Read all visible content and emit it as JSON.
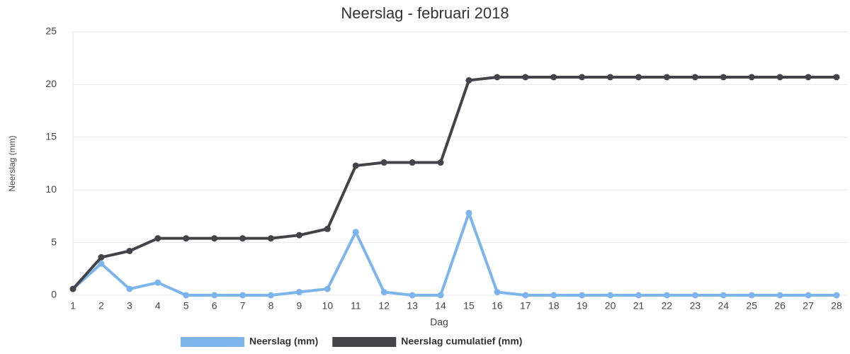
{
  "chart_data": {
    "type": "line",
    "title": "Neerslag - februari 2018",
    "x_label": "Dag",
    "y_label": "Neerslag (mm)",
    "x": [
      1,
      2,
      3,
      4,
      5,
      6,
      7,
      8,
      9,
      10,
      11,
      12,
      13,
      14,
      15,
      16,
      17,
      18,
      19,
      20,
      21,
      22,
      23,
      24,
      25,
      26,
      27,
      28
    ],
    "xlim": [
      1,
      28
    ],
    "xticks": [
      1,
      2,
      3,
      4,
      5,
      6,
      7,
      8,
      9,
      10,
      11,
      12,
      13,
      14,
      15,
      16,
      17,
      18,
      19,
      20,
      21,
      22,
      23,
      24,
      25,
      26,
      27,
      28
    ],
    "ylim": [
      0,
      25
    ],
    "yticks": [
      0,
      5,
      10,
      15,
      20,
      25
    ],
    "grid": true,
    "legend": "bottom",
    "series": [
      {
        "name": "Neerslag (mm)",
        "color": "#7cb5ec",
        "values": [
          0.6,
          3.0,
          0.6,
          1.2,
          0,
          0,
          0,
          0,
          0.3,
          0.6,
          6.0,
          0.3,
          0,
          0,
          7.8,
          0.3,
          0,
          0,
          0,
          0,
          0,
          0,
          0,
          0,
          0,
          0,
          0,
          0
        ]
      },
      {
        "name": "Neerslag cumulatief (mm)",
        "color": "#434348",
        "values": [
          0.6,
          3.6,
          4.2,
          5.4,
          5.4,
          5.4,
          5.4,
          5.4,
          5.7,
          6.3,
          12.3,
          12.6,
          12.6,
          12.6,
          20.4,
          20.7,
          20.7,
          20.7,
          20.7,
          20.7,
          20.7,
          20.7,
          20.7,
          20.7,
          20.7,
          20.7,
          20.7,
          20.7
        ]
      }
    ]
  }
}
